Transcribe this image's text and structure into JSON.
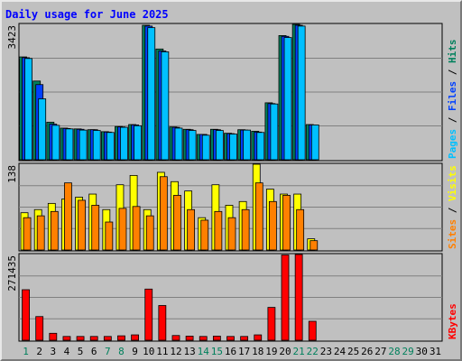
{
  "chart_data": {
    "type": "bar",
    "title": "Daily usage for June 2025",
    "title_color": "#0000ff",
    "categories": [
      "1",
      "2",
      "3",
      "4",
      "5",
      "6",
      "7",
      "8",
      "9",
      "10",
      "11",
      "12",
      "13",
      "14",
      "15",
      "16",
      "17",
      "18",
      "19",
      "20",
      "21",
      "22",
      "23",
      "24",
      "25",
      "26",
      "27",
      "28",
      "29",
      "30",
      "31"
    ],
    "weekend_days": [
      "1",
      "7",
      "8",
      "14",
      "15",
      "21",
      "22",
      "28",
      "29"
    ],
    "weekend_color": "#00805c",
    "weekday_color": "#000000",
    "grid": true,
    "panels": [
      {
        "name": "hits-files-pages",
        "max_label": "3423",
        "ymax": 3423,
        "legend": [
          {
            "label": "Pages",
            "color": "#00c0ff"
          },
          {
            "label": " / ",
            "color": "#000000"
          },
          {
            "label": "Files",
            "color": "#0040ff"
          },
          {
            "label": " / ",
            "color": "#000000"
          },
          {
            "label": "Hits",
            "color": "#00805c"
          }
        ],
        "series": [
          {
            "name": "Hits",
            "color": "#00805c",
            "values": [
              2600,
              1990,
              950,
              800,
              780,
              760,
              710,
              840,
              890,
              3400,
              2800,
              830,
              770,
              640,
              770,
              670,
              760,
              720,
              1440,
              3140,
              3423,
              890,
              0,
              0,
              0,
              0,
              0,
              0,
              0,
              0,
              0
            ]
          },
          {
            "name": "Files",
            "color": "#0040ff",
            "values": [
              2580,
              1900,
              900,
              790,
              770,
              760,
              700,
              830,
              880,
              3380,
              2750,
              820,
              760,
              640,
              760,
              660,
              750,
              700,
              1420,
              3120,
              3400,
              880,
              0,
              0,
              0,
              0,
              0,
              0,
              0,
              0,
              0
            ]
          },
          {
            "name": "Pages",
            "color": "#00c0ff",
            "values": [
              2560,
              1540,
              870,
              780,
              750,
              740,
              690,
              820,
              860,
              3340,
              2730,
              800,
              740,
              620,
              740,
              650,
              750,
              690,
              1410,
              3090,
              3380,
              880,
              0,
              0,
              0,
              0,
              0,
              0,
              0,
              0,
              0
            ]
          }
        ]
      },
      {
        "name": "visits-sites",
        "max_label": "138",
        "ymax": 138,
        "legend": [
          {
            "label": "Sites",
            "color": "#ff8000"
          },
          {
            "label": " / ",
            "color": "#000000"
          },
          {
            "label": "Visits",
            "color": "#ffff00"
          }
        ],
        "series": [
          {
            "name": "Visits",
            "color": "#ffff00",
            "values": [
              60,
              65,
              75,
              82,
              85,
              90,
              65,
              105,
              120,
              65,
              125,
              110,
              95,
              52,
              105,
              72,
              78,
              138,
              98,
              90,
              90,
              18,
              0,
              0,
              0,
              0,
              0,
              0,
              0,
              0,
              0
            ]
          },
          {
            "name": "Sites",
            "color": "#ff8000",
            "values": [
              52,
              55,
              62,
              108,
              80,
              72,
              45,
              67,
              70,
              55,
              118,
              88,
              65,
              48,
              62,
              52,
              65,
              108,
              78,
              88,
              65,
              15,
              0,
              0,
              0,
              0,
              0,
              0,
              0,
              0,
              0
            ]
          }
        ]
      },
      {
        "name": "kbytes",
        "max_label": "271435",
        "ymax": 271435,
        "legend": [
          {
            "label": "KBytes",
            "color": "#ff0000"
          }
        ],
        "series": [
          {
            "name": "KBytes",
            "color": "#ff0000",
            "values": [
              160000,
              75000,
              22000,
              12000,
              12000,
              12000,
              12000,
              14000,
              17000,
              162000,
              110000,
              15000,
              13000,
              12000,
              13000,
              12000,
              12000,
              17000,
              104000,
              270000,
              271435,
              60000,
              0,
              0,
              0,
              0,
              0,
              0,
              0,
              0,
              0
            ]
          }
        ]
      }
    ]
  }
}
